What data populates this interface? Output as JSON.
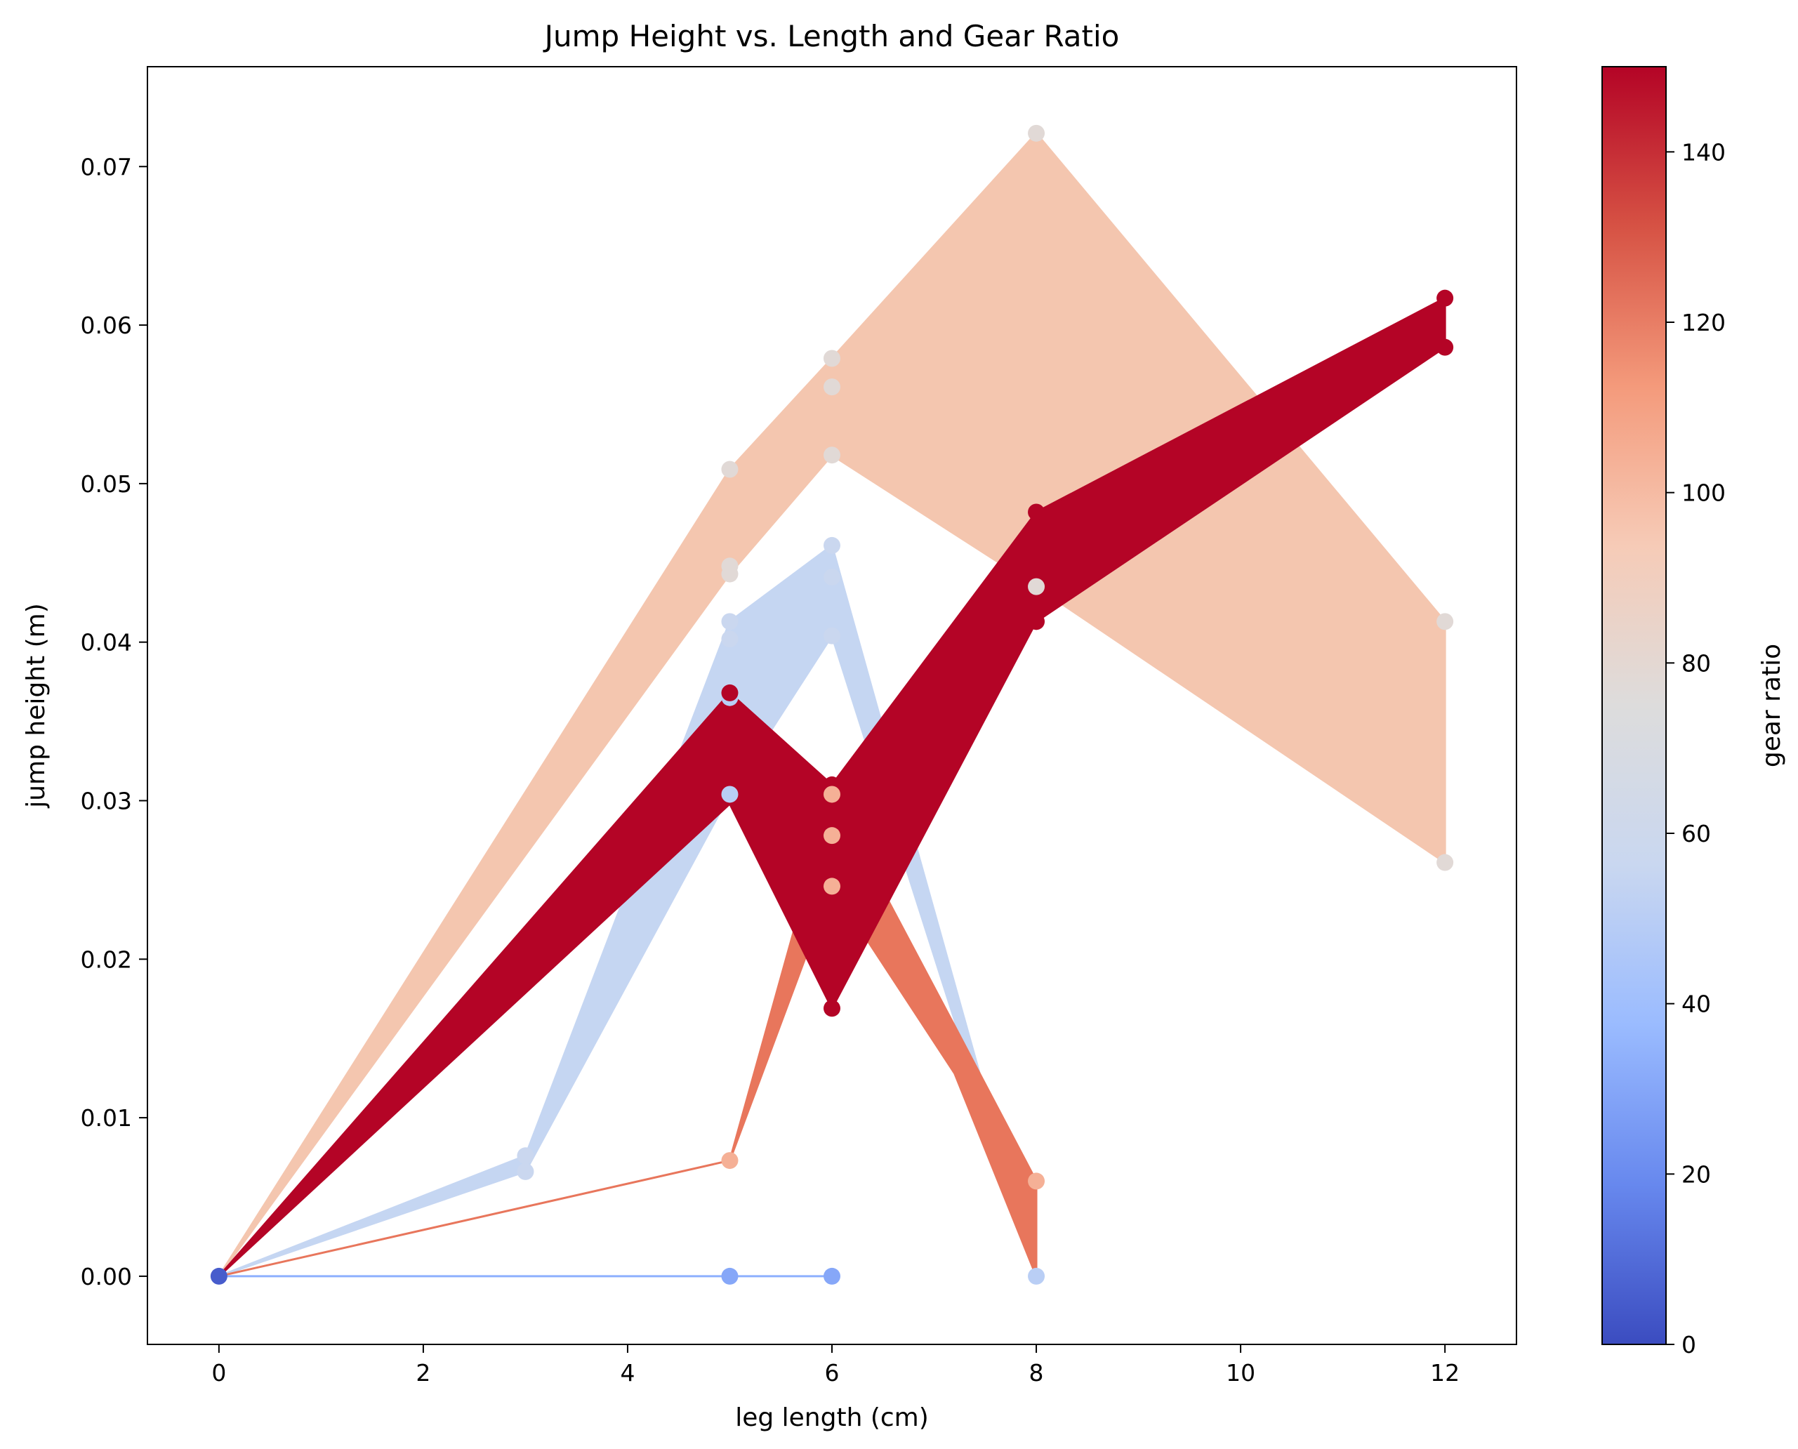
{
  "chart_data": {
    "type": "area",
    "title": "Jump Height vs. Length and Gear Ratio",
    "xlabel": "leg length (cm)",
    "ylabel": "jump height (m)",
    "xlim": [
      -0.7,
      12.7
    ],
    "ylim": [
      -0.0043,
      0.0763
    ],
    "xticks": [
      0,
      2,
      4,
      6,
      8,
      10,
      12
    ],
    "yticks": [
      0.0,
      0.01,
      0.02,
      0.03,
      0.04,
      0.05,
      0.06,
      0.07
    ],
    "xtick_labels": [
      "0",
      "2",
      "4",
      "6",
      "8",
      "10",
      "12"
    ],
    "ytick_labels": [
      "0.00",
      "0.01",
      "0.02",
      "0.03",
      "0.04",
      "0.05",
      "0.06",
      "0.07"
    ],
    "grid": false,
    "colorbar": {
      "label": "gear ratio",
      "range": [
        0,
        150
      ],
      "ticks": [
        0,
        20,
        40,
        60,
        80,
        100,
        120,
        140
      ],
      "tick_labels": [
        "0",
        "20",
        "40",
        "60",
        "80",
        "100",
        "120",
        "140"
      ],
      "colormap": "coolwarm",
      "colormap_stops": [
        "#3b4cc0",
        "#6788ee",
        "#9abbff",
        "#c9d7f0",
        "#dddcdc",
        "#f6cbb7",
        "#f49a7b",
        "#d65244",
        "#b40426"
      ]
    },
    "bands": [
      {
        "fill_color": "#f4c6af",
        "x": [
          0,
          5,
          6,
          8,
          12
        ],
        "lower": [
          0,
          0.0443,
          0.0518,
          0.0435,
          0.0261
        ],
        "upper": [
          0,
          0.0509,
          0.0579,
          0.0721,
          0.0413
        ]
      },
      {
        "fill_color": "#c5d6f2",
        "x": [
          0,
          3,
          5,
          6,
          8
        ],
        "lower": [
          0,
          0.0066,
          0.0304,
          0.0404,
          0.0
        ],
        "upper": [
          0,
          0.0076,
          0.0413,
          0.0461,
          0.0
        ]
      },
      {
        "fill_color": "#e8765c",
        "x": [
          0,
          5,
          6,
          7.2,
          8
        ],
        "lower": [
          0,
          0.0073,
          0.0246,
          0.0128,
          0.0
        ],
        "upper": [
          0,
          0.0073,
          0.0304,
          0.0158,
          0.006
        ]
      },
      {
        "fill_color": "#b40426",
        "x": [
          0,
          5,
          6,
          8,
          12
        ],
        "lower": [
          0,
          0.0298,
          0.0169,
          0.0413,
          0.0586
        ],
        "upper": [
          0,
          0.0368,
          0.031,
          0.0482,
          0.0617
        ]
      }
    ],
    "lines": [
      {
        "color": "#8db0fe",
        "x": [
          0,
          5,
          6
        ],
        "y": [
          0,
          0,
          0
        ]
      }
    ],
    "points": [
      {
        "x": 0,
        "y": 0.0,
        "gear": 5
      },
      {
        "x": 5,
        "y": 0.0,
        "gear": 30
      },
      {
        "x": 6,
        "y": 0.0,
        "gear": 30
      },
      {
        "x": 8,
        "y": 0.0,
        "gear": 50
      },
      {
        "x": 3,
        "y": 0.0066,
        "gear": 57
      },
      {
        "x": 3,
        "y": 0.0076,
        "gear": 57
      },
      {
        "x": 5,
        "y": 0.0073,
        "gear": 104
      },
      {
        "x": 8,
        "y": 0.006,
        "gear": 104
      },
      {
        "x": 5,
        "y": 0.0304,
        "gear": 50
      },
      {
        "x": 5,
        "y": 0.0365,
        "gear": 50
      },
      {
        "x": 5,
        "y": 0.0368,
        "gear": 150
      },
      {
        "x": 5,
        "y": 0.0402,
        "gear": 57
      },
      {
        "x": 5,
        "y": 0.0413,
        "gear": 57
      },
      {
        "x": 5,
        "y": 0.0443,
        "gear": 78
      },
      {
        "x": 5,
        "y": 0.0448,
        "gear": 78
      },
      {
        "x": 5,
        "y": 0.0509,
        "gear": 78
      },
      {
        "x": 6,
        "y": 0.0169,
        "gear": 150
      },
      {
        "x": 6,
        "y": 0.031,
        "gear": 150
      },
      {
        "x": 6,
        "y": 0.0246,
        "gear": 104
      },
      {
        "x": 6,
        "y": 0.0278,
        "gear": 104
      },
      {
        "x": 6,
        "y": 0.0304,
        "gear": 104
      },
      {
        "x": 6,
        "y": 0.0404,
        "gear": 57
      },
      {
        "x": 6,
        "y": 0.0441,
        "gear": 57
      },
      {
        "x": 6,
        "y": 0.0461,
        "gear": 57
      },
      {
        "x": 6,
        "y": 0.0518,
        "gear": 78
      },
      {
        "x": 6,
        "y": 0.0561,
        "gear": 78
      },
      {
        "x": 6,
        "y": 0.0579,
        "gear": 78
      },
      {
        "x": 8,
        "y": 0.0413,
        "gear": 150
      },
      {
        "x": 8,
        "y": 0.0482,
        "gear": 150
      },
      {
        "x": 8,
        "y": 0.0435,
        "gear": 78
      },
      {
        "x": 8,
        "y": 0.0721,
        "gear": 78
      },
      {
        "x": 12,
        "y": 0.0586,
        "gear": 150
      },
      {
        "x": 12,
        "y": 0.0617,
        "gear": 150
      },
      {
        "x": 12,
        "y": 0.0261,
        "gear": 78
      },
      {
        "x": 12,
        "y": 0.0413,
        "gear": 78
      }
    ]
  }
}
